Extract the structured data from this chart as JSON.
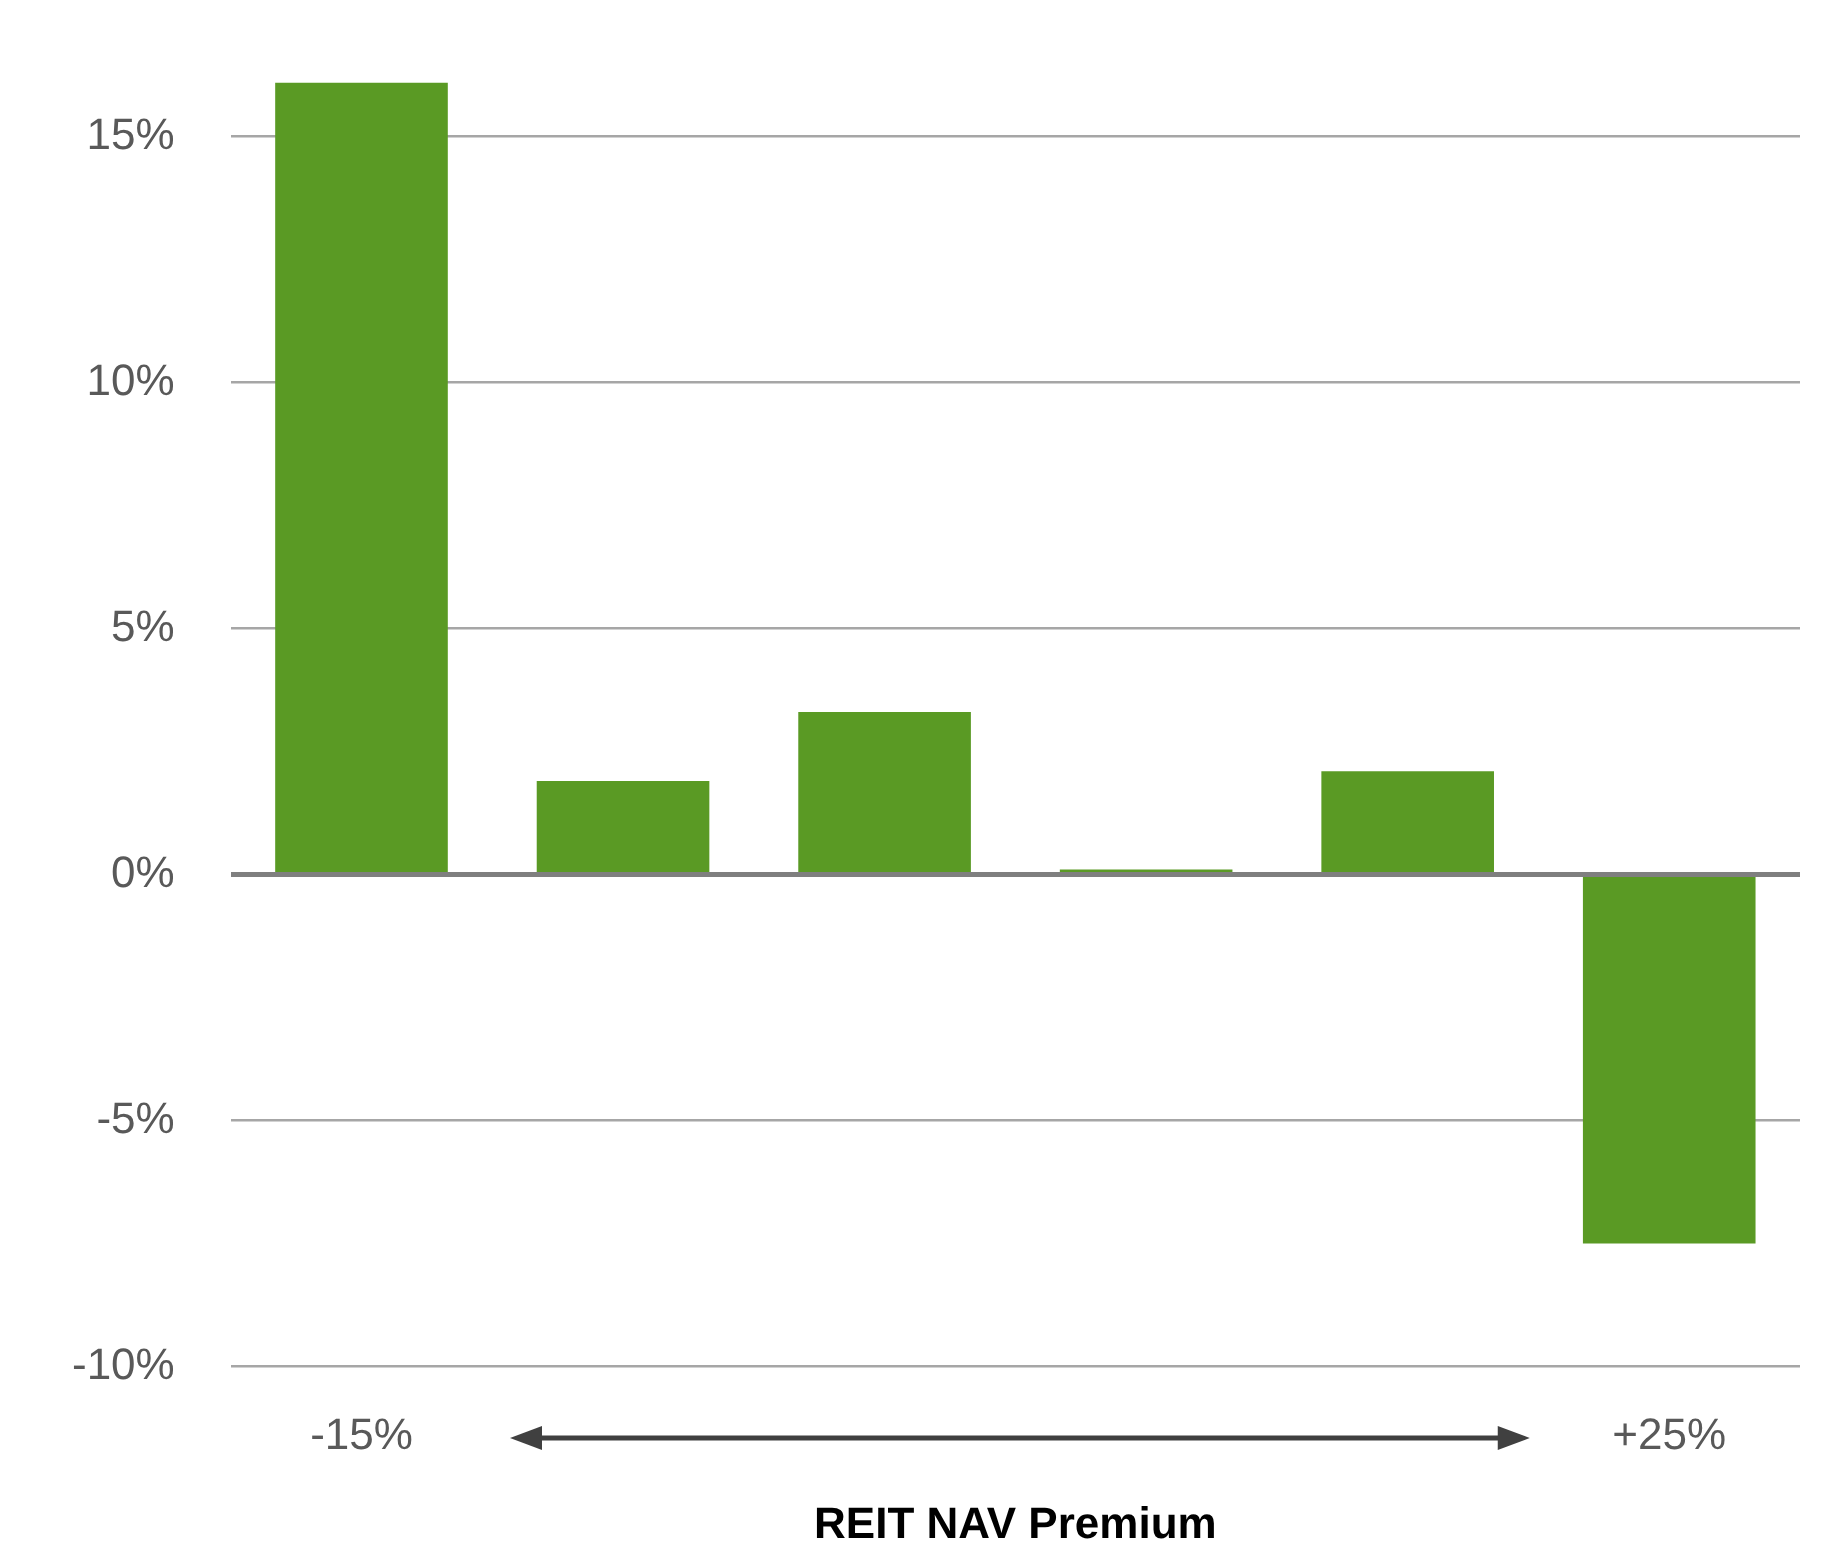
{
  "chart_data": {
    "type": "bar",
    "xlabel": "REIT NAV Premium",
    "categories": [
      "-15%",
      null,
      null,
      null,
      null,
      "+25%"
    ],
    "values": [
      16.1,
      1.9,
      3.3,
      0.1,
      2.1,
      -7.5
    ],
    "color": "#5a9a24",
    "ylim": [
      -10,
      16.1
    ],
    "yticks": [
      {
        "value": -10,
        "label": "-10%"
      },
      {
        "value": -5,
        "label": "-5%"
      },
      {
        "value": 0,
        "label": "0%"
      },
      {
        "value": 5,
        "label": "5%"
      },
      {
        "value": 10,
        "label": "10%"
      },
      {
        "value": 15,
        "label": "15%"
      }
    ],
    "grid": "y",
    "legend": false
  }
}
